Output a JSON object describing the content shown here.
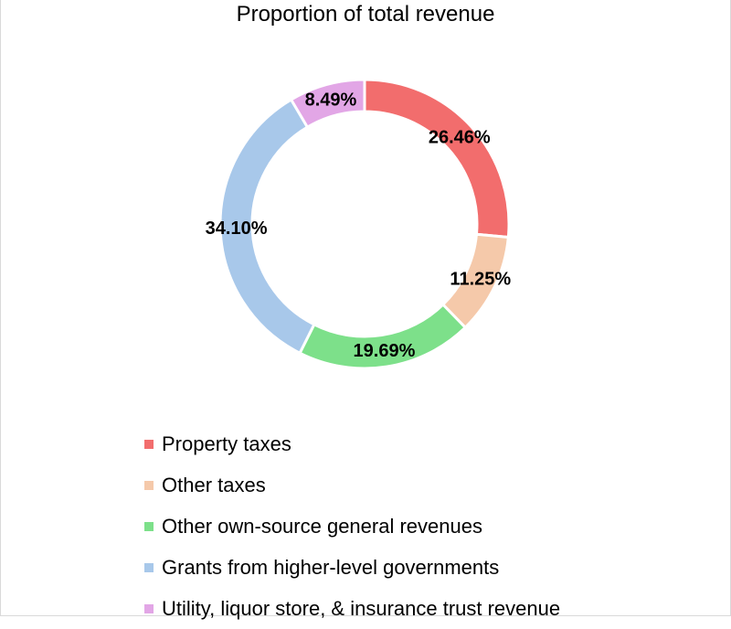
{
  "chart_data": {
    "type": "pie",
    "subtype": "donut",
    "title": "Proportion of total revenue",
    "legend_position": "bottom",
    "categories": [
      "Property taxes",
      "Other taxes",
      "Other own-source general revenues",
      "Grants from higher-level governments",
      "Utility, liquor store, & insurance trust revenue"
    ],
    "values": [
      26.46,
      11.25,
      19.69,
      34.1,
      8.49
    ],
    "labels": [
      "26.46%",
      "11.25%",
      "19.69%",
      "34.10%",
      "8.49%"
    ],
    "colors": [
      "#f26d6d",
      "#f5c9aa",
      "#7de08a",
      "#a8c8ea",
      "#e2a6e6"
    ]
  }
}
